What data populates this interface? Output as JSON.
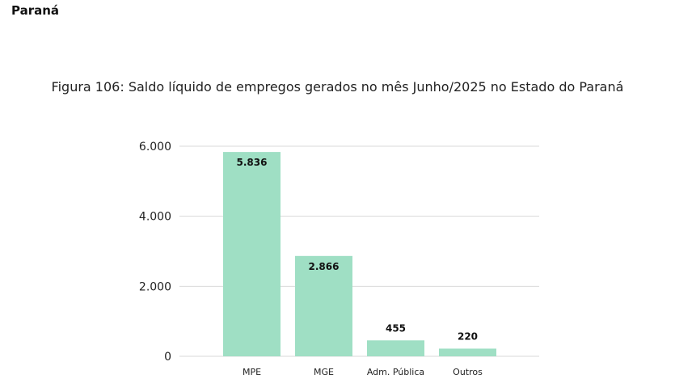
{
  "header": {
    "section_title": "Paraná"
  },
  "chart_data": {
    "type": "bar",
    "title": "Figura 106: Saldo líquido de empregos gerados no mês Junho/2025 no Estado do Paraná",
    "categories": [
      "MPE",
      "MGE",
      "Adm. Pública",
      "Outros"
    ],
    "values": [
      5836,
      2866,
      455,
      220
    ],
    "value_labels": [
      "5.836",
      "2.866",
      "455",
      "220"
    ],
    "xlabel": "",
    "ylabel": "",
    "ylim": [
      0,
      6000
    ],
    "yticks": [
      0,
      2000,
      4000,
      6000
    ],
    "ytick_labels": [
      "0",
      "2.000",
      "4.000",
      "6.000"
    ],
    "grid": true,
    "legend": "none",
    "bar_color": "#9fdfc4",
    "grid_color": "#d9d9d9"
  }
}
